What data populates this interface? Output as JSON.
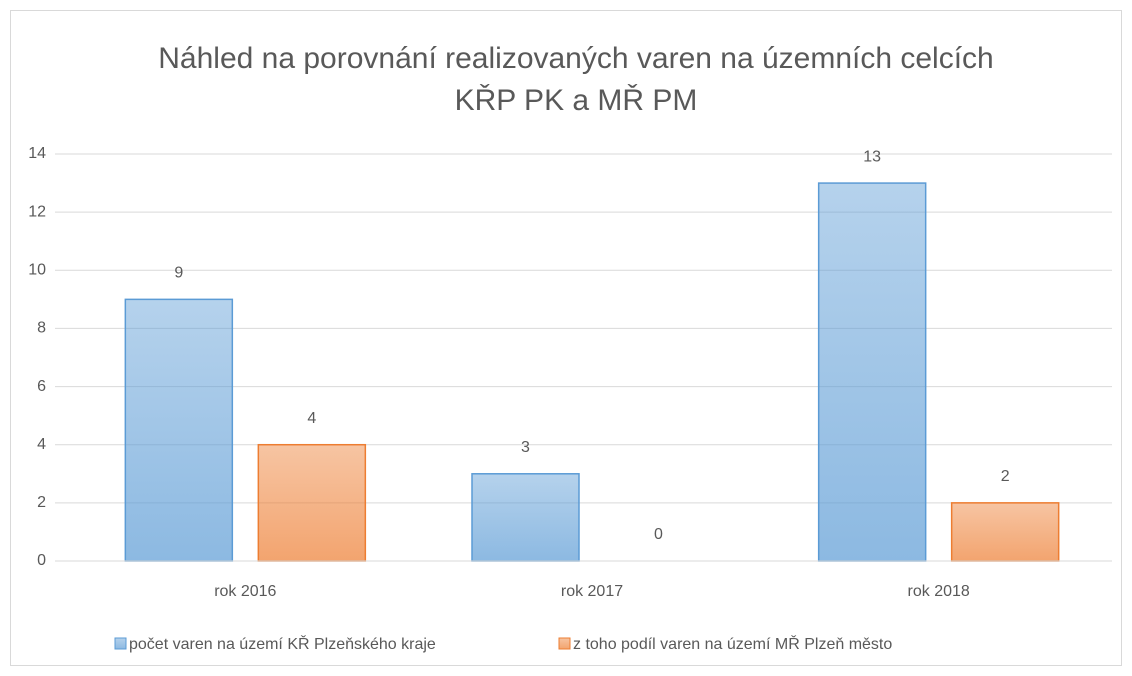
{
  "chart_data": {
    "type": "bar",
    "title": "Náhled na porovnání realizovaných varen na územních celcích KŘP PK a MŘ PM",
    "categories": [
      "rok 2016",
      "rok 2017",
      "rok 2018"
    ],
    "series": [
      {
        "name": "počet varen na území KŘ Plzeňského kraje",
        "color": "#5b9bd5",
        "values": [
          9,
          3,
          13
        ]
      },
      {
        "name": "z toho podíl varen na území MŘ Plzeň město",
        "color": "#ed7d31",
        "values": [
          4,
          0,
          2
        ]
      }
    ],
    "ylim": [
      0,
      14
    ],
    "yticks": [
      0,
      2,
      4,
      6,
      8,
      10,
      12,
      14
    ],
    "grid": true,
    "legend": "bottom"
  }
}
